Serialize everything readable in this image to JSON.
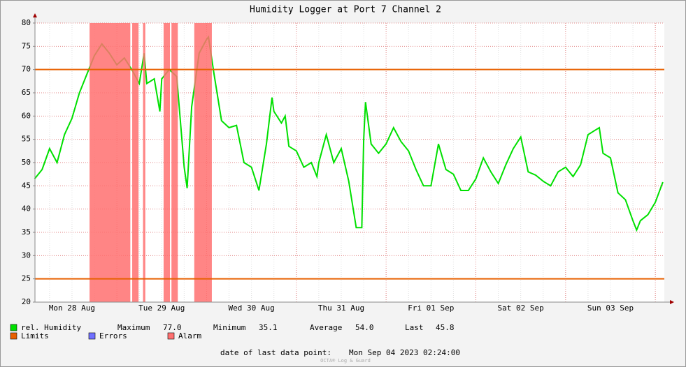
{
  "chart_data": {
    "type": "line",
    "title": "Humidity Logger at Port 7 Channel 2",
    "x": [
      2,
      4,
      6,
      8,
      10,
      12,
      14,
      16,
      18,
      20,
      22,
      24,
      26,
      28,
      30,
      31.3,
      32,
      34,
      35.5,
      36,
      38,
      40,
      42,
      42.8,
      44,
      46,
      48,
      48.5,
      50,
      52,
      54,
      56,
      58,
      60,
      62,
      64,
      65.5,
      66,
      68,
      69,
      70,
      72,
      74,
      76,
      77.5,
      78,
      80,
      82,
      84,
      86,
      88,
      89.5,
      90,
      90.5,
      92,
      94,
      96,
      98,
      100,
      102,
      104,
      106,
      108,
      110,
      112,
      114,
      116,
      118,
      120,
      122,
      124,
      126,
      128,
      130,
      132,
      134,
      136,
      138,
      140,
      142,
      144,
      146,
      148,
      150,
      152,
      153,
      154,
      156,
      158,
      160,
      162,
      163,
      164,
      166,
      168,
      170
    ],
    "series": [
      {
        "name": "rel. Humidity",
        "color": "#00e000",
        "values": [
          46.5,
          48.5,
          53,
          50,
          56,
          59.5,
          65,
          69,
          73,
          75.5,
          73.5,
          71,
          72.5,
          70,
          67,
          73.5,
          67,
          68,
          61,
          68,
          70,
          68.5,
          49,
          44.5,
          62,
          73.5,
          76.5,
          77,
          69,
          59,
          57.5,
          58,
          50,
          49,
          44,
          54,
          64,
          61,
          58.5,
          60,
          53.5,
          52.5,
          49,
          50,
          47,
          50,
          56,
          50,
          53,
          46,
          36,
          36,
          55,
          63,
          54,
          52,
          54,
          57.5,
          54.5,
          52.5,
          48.5,
          45,
          45,
          54,
          48.5,
          47.5,
          44,
          44,
          46.5,
          51,
          48,
          45.5,
          49.5,
          53,
          55.5,
          48,
          47.3,
          46,
          45,
          48,
          49,
          47,
          49.5,
          56,
          57,
          57.5,
          52,
          51,
          43.5,
          42,
          37.5,
          35.5,
          37.5,
          38.8,
          41.5,
          45.8
        ]
      }
    ],
    "limits": {
      "name": "Limits",
      "color": "#e86000",
      "values": [
        70,
        25
      ]
    },
    "errors": {
      "name": "Errors",
      "color": "#7070ff"
    },
    "alarms": {
      "name": "Alarm",
      "color": "#ff7070",
      "ranges": [
        [
          16.7,
          27.6
        ],
        [
          28.1,
          29.8
        ],
        [
          31.0,
          31.6
        ],
        [
          36.5,
          38.2
        ],
        [
          38.6,
          40.3
        ],
        [
          44.7,
          49.4
        ]
      ]
    },
    "stats": [
      {
        "name": "Maximum",
        "value": 77,
        "value_label": "77.0"
      },
      {
        "name": "Minimum",
        "value": 35.1
      },
      {
        "name": "Average",
        "value": 54,
        "value_label": "54.0"
      },
      {
        "name": "Last",
        "value": 45.8
      }
    ],
    "footer": {
      "label": "date of last data point:",
      "value": "Mon Sep 04 2023 02:24:00"
    },
    "watermark": "OCTA® Log & Guard",
    "xlim": [
      2.1,
      170.4
    ],
    "xticks": [
      {
        "value": 12,
        "label": "Mon 28 Aug"
      },
      {
        "value": 36,
        "label": "Tue 29 Aug"
      },
      {
        "value": 60,
        "label": "Wed 30 Aug"
      },
      {
        "value": 84,
        "label": "Thu 31 Aug"
      },
      {
        "value": 108,
        "label": "Fri 01 Sep"
      },
      {
        "value": 132,
        "label": "Sat 02 Sep"
      },
      {
        "value": 156,
        "label": "Sun 03 Sep"
      }
    ],
    "ylim": [
      20,
      80
    ],
    "yticks": [
      20,
      25,
      30,
      35,
      40,
      45,
      50,
      55,
      60,
      65,
      70,
      75,
      80
    ],
    "grid": true
  }
}
